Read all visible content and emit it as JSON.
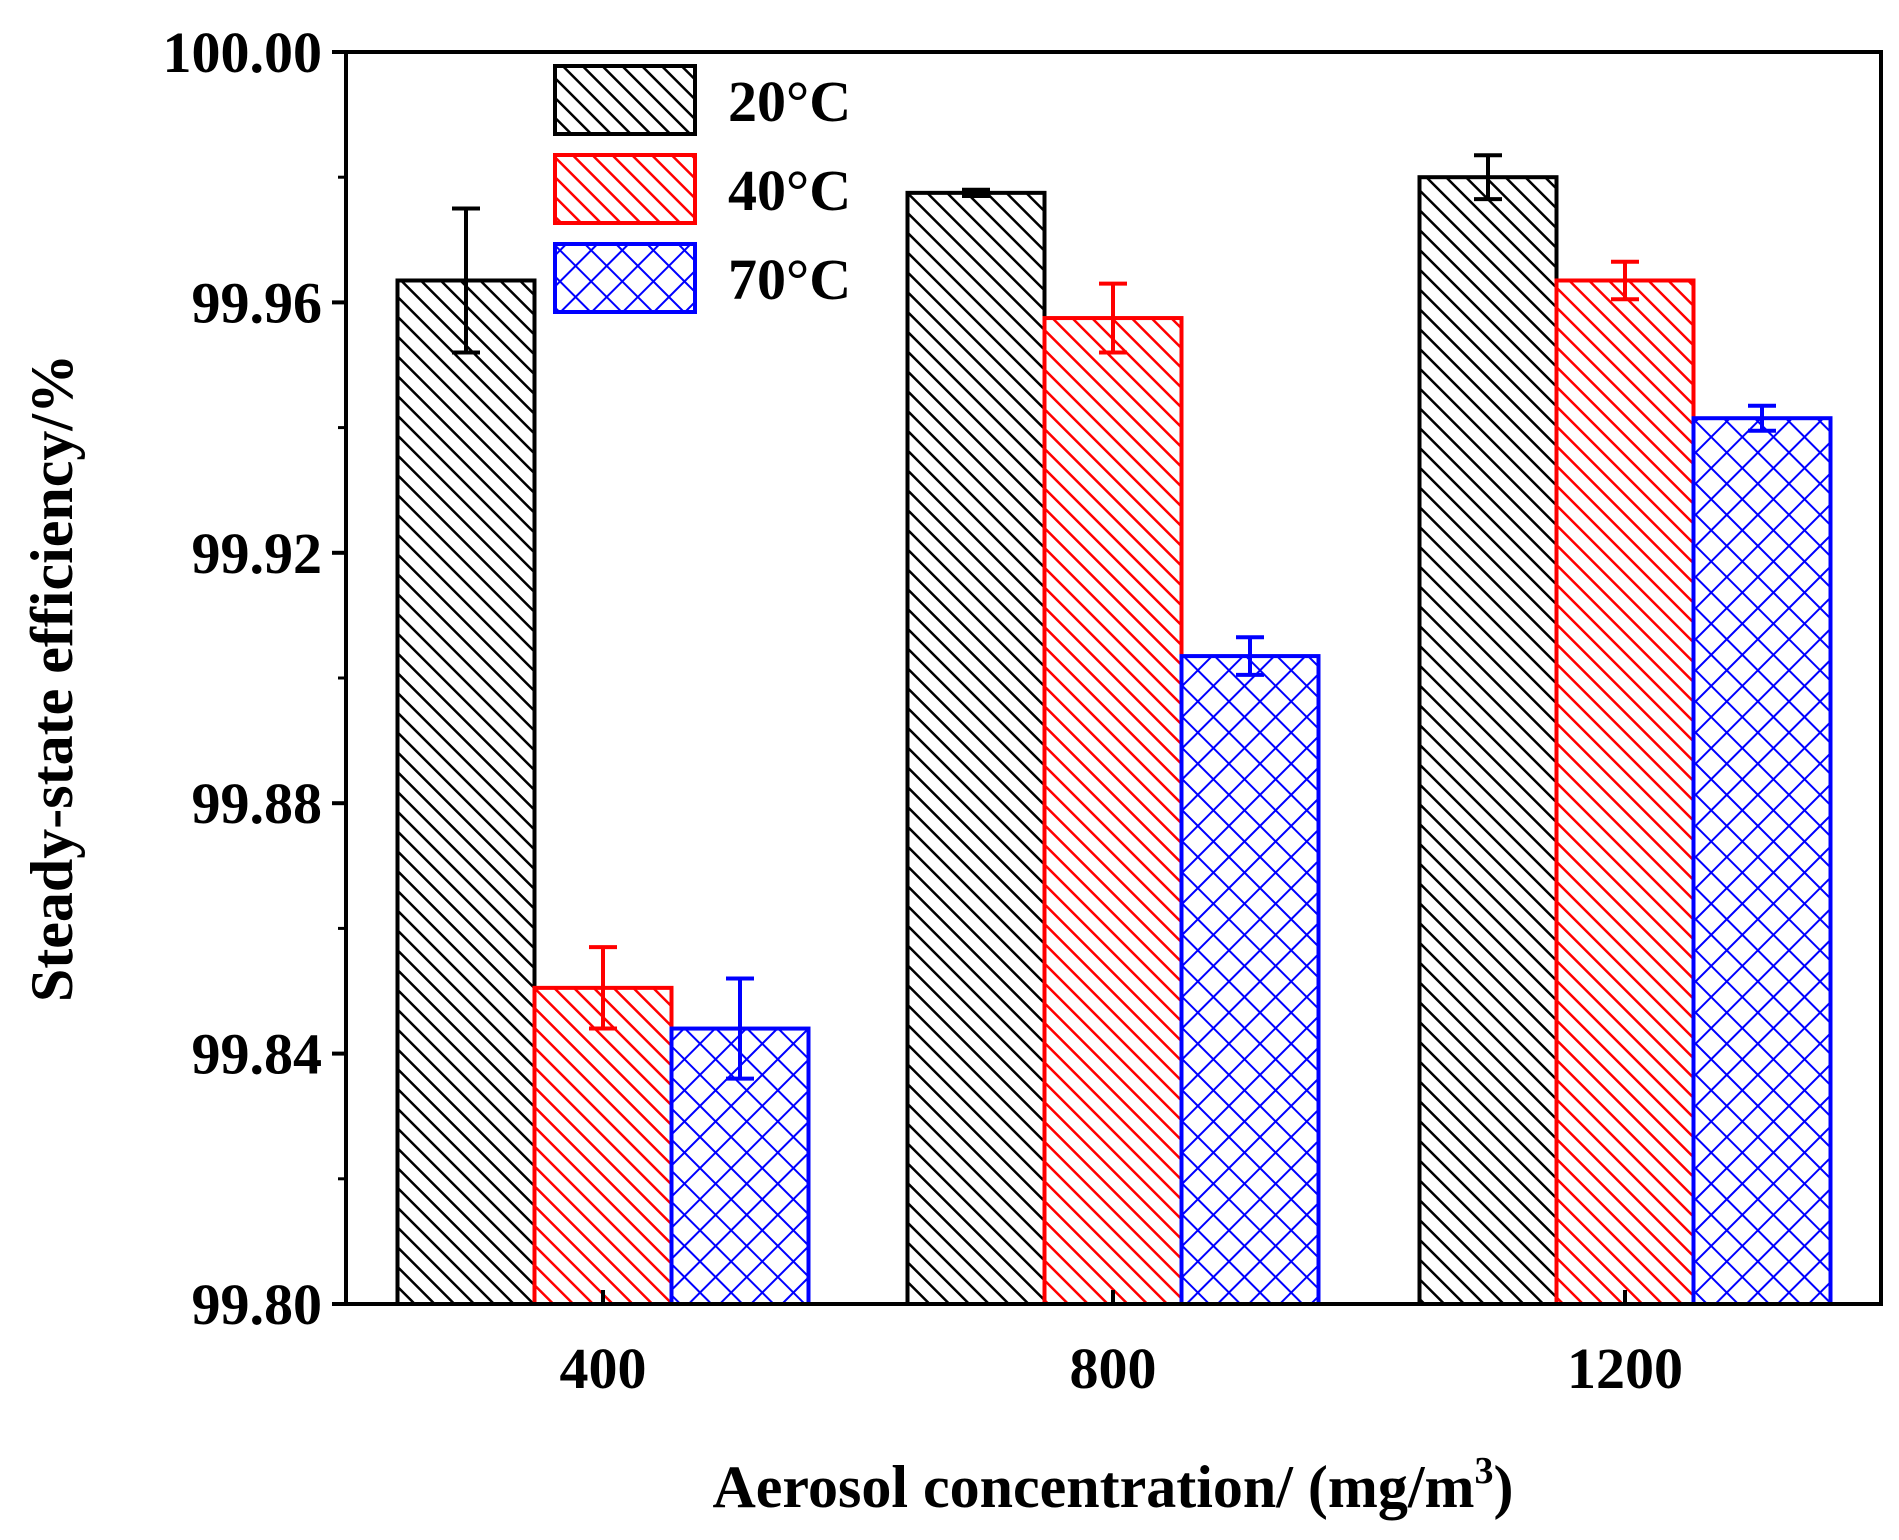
{
  "chart_data": {
    "type": "bar",
    "title": "",
    "xlabel": "Aerosol concentration/ (mg/m",
    "xlabel_sup": "3",
    "xlabel_close": ")",
    "ylabel": "Steady-state efficiency/%",
    "categories": [
      "400",
      "800",
      "1200"
    ],
    "ylim": [
      99.8,
      100.0
    ],
    "yticks": [
      "99.80",
      "99.84",
      "99.88",
      "99.92",
      "99.96",
      "100.00"
    ],
    "ytick_values": [
      99.8,
      99.84,
      99.88,
      99.92,
      99.96,
      100.0
    ],
    "grid": false,
    "legend_position": "top-left",
    "series": [
      {
        "name": "20°C",
        "color": "#000000",
        "pattern": "diagonal-hatch",
        "values": [
          99.9635,
          99.9775,
          99.98
        ],
        "errors": [
          0.0115,
          0.0005,
          0.0035
        ]
      },
      {
        "name": "40°C",
        "color": "#ff0000",
        "pattern": "diagonal-hatch",
        "values": [
          99.8505,
          99.9575,
          99.9635
        ],
        "errors": [
          0.0065,
          0.0055,
          0.003
        ]
      },
      {
        "name": "70°C",
        "color": "#0000ff",
        "pattern": "cross-hatch",
        "values": [
          99.844,
          99.9035,
          99.9415
        ],
        "errors": [
          0.008,
          0.003,
          0.002
        ]
      }
    ]
  }
}
